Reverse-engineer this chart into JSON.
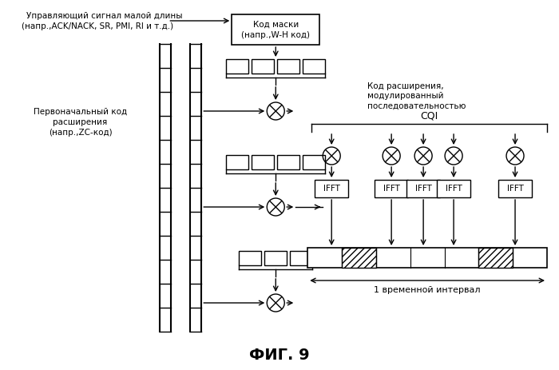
{
  "title": "ФИГ. 9",
  "bg_color": "#ffffff",
  "text_color": "#000000",
  "label_top_left_1": "Управляющий сигнал малой длины",
  "label_top_left_2": "(напр.,ACK/NACK, SR, PMI, RI и т.д.)",
  "label_mask_box_1": "Код маски",
  "label_mask_box_2": "(напр.,W-H код)",
  "label_left_1": "Первоначальный код",
  "label_left_2": "расширения",
  "label_left_3": "(напр.,ZC-код)",
  "label_right_top_1": "Код расширения,",
  "label_right_top_2": "модулированный",
  "label_right_top_3": "последовательностью",
  "label_cqi": "CQI",
  "label_interval": "1 временной интервал"
}
